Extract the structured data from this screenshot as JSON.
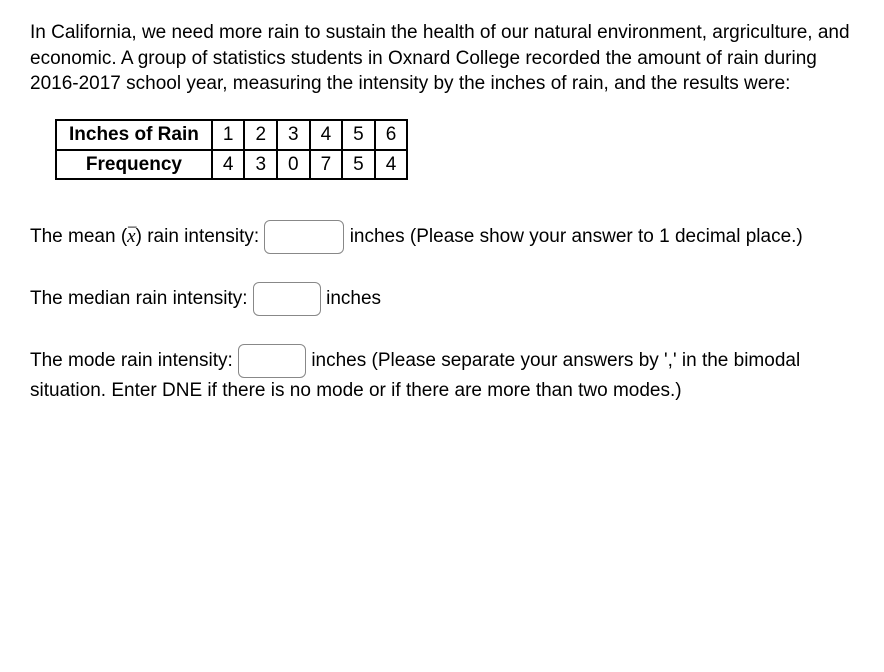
{
  "intro_text": "In California, we need more rain to sustain the health of our natural environment, argriculture, and economic. A group of statistics students in Oxnard College recorded the amount of rain during 2016-2017 school year, measuring the intensity by the inches of rain, and the results were:",
  "table": {
    "row1_header": "Inches of Rain",
    "row2_header": "Frequency",
    "columns": [
      "1",
      "2",
      "3",
      "4",
      "5",
      "6"
    ],
    "frequencies": [
      "4",
      "3",
      "0",
      "7",
      "5",
      "4"
    ],
    "border_color": "#000000",
    "cell_fontsize": 19,
    "header_fontweight": "bold"
  },
  "q1": {
    "prefix": "The mean (",
    "symbol": "x",
    "mid": ") rain intensity: ",
    "suffix": " inches (Please show your answer to 1 decimal place.)"
  },
  "q2": {
    "prefix": "The median rain intensity: ",
    "suffix": " inches"
  },
  "q3": {
    "prefix": "The mode rain intensity: ",
    "suffix": " inches (Please separate your answers by ',' in the bimodal situation. Enter DNE if there is no mode or if there are more than two modes.)"
  },
  "colors": {
    "text": "#000000",
    "background": "#ffffff",
    "input_border": "#888888"
  }
}
